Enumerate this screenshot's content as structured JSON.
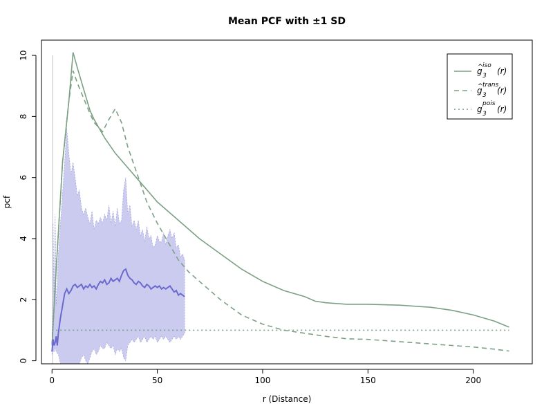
{
  "chart_data": {
    "type": "line",
    "title": "Mean PCF with ±1 SD",
    "xlabel": "r (Distance)",
    "ylabel": "pcf",
    "xlim": [
      -5,
      228
    ],
    "ylim": [
      -0.1,
      10.5
    ],
    "x_ticks": [
      0,
      50,
      100,
      150,
      200
    ],
    "y_ticks": [
      0,
      2,
      4,
      6,
      8,
      10
    ],
    "x_tick_labels": [
      "0",
      "50",
      "100",
      "150",
      "200"
    ],
    "y_tick_labels": [
      "0",
      "2",
      "4",
      "6",
      "8",
      "10"
    ],
    "legend_position": "top-right",
    "colors": {
      "model": "#7ba084",
      "mean": "#6a6acd",
      "band_fill": "#cbcbf0",
      "band_edge": "#9a9ad6",
      "axis": "#000000",
      "vline": "#bfbfbf"
    },
    "series": [
      {
        "name": "iso",
        "legend_base": "g",
        "legend_sub": "3",
        "legend_sup": "iso",
        "legend_arg": "(r)",
        "style": "solid",
        "x": [
          0,
          2,
          5,
          8,
          10,
          12,
          15,
          18,
          20,
          25,
          30,
          35,
          40,
          45,
          50,
          60,
          70,
          80,
          90,
          100,
          110,
          120,
          125,
          130,
          140,
          150,
          165,
          180,
          190,
          200,
          210,
          217
        ],
        "y": [
          0.5,
          3.0,
          6.5,
          8.5,
          10.1,
          9.6,
          8.9,
          8.2,
          7.9,
          7.3,
          6.8,
          6.4,
          6.0,
          5.6,
          5.2,
          4.6,
          4.0,
          3.5,
          3.0,
          2.6,
          2.3,
          2.1,
          1.95,
          1.9,
          1.85,
          1.85,
          1.82,
          1.75,
          1.65,
          1.5,
          1.3,
          1.1
        ]
      },
      {
        "name": "trans",
        "legend_base": "g",
        "legend_sub": "3",
        "legend_sup": "trans",
        "legend_arg": "(r)",
        "style": "dashed",
        "x": [
          0,
          2,
          5,
          8,
          10,
          12,
          15,
          18,
          20,
          24,
          27,
          30,
          33,
          36,
          40,
          45,
          50,
          55,
          60,
          65,
          70,
          80,
          90,
          100,
          110,
          120,
          130,
          140,
          150,
          160,
          170,
          180,
          190,
          200,
          210,
          217
        ],
        "y": [
          0.5,
          3.0,
          6.5,
          8.5,
          9.5,
          9.1,
          8.6,
          8.1,
          7.8,
          7.5,
          7.9,
          8.25,
          7.8,
          7.0,
          6.2,
          5.2,
          4.5,
          3.9,
          3.3,
          2.9,
          2.6,
          2.0,
          1.5,
          1.2,
          1.0,
          0.9,
          0.8,
          0.72,
          0.7,
          0.65,
          0.6,
          0.55,
          0.5,
          0.45,
          0.38,
          0.32
        ]
      },
      {
        "name": "pois",
        "legend_base": "g",
        "legend_sub": "3",
        "legend_sup": "pois",
        "legend_arg": "(r)",
        "style": "dotted",
        "x": [
          0,
          217
        ],
        "y": [
          1,
          1
        ]
      }
    ],
    "mean_pcf": {
      "x": [
        0,
        0.5,
        1,
        1.5,
        2,
        2.5,
        3,
        4,
        5,
        6,
        7,
        8,
        9,
        10,
        11,
        12,
        13,
        14,
        15,
        16,
        17,
        18,
        19,
        20,
        21,
        22,
        23,
        24,
        25,
        26,
        27,
        28,
        29,
        30,
        31,
        32,
        33,
        34,
        35,
        36,
        37,
        38,
        39,
        40,
        41,
        42,
        43,
        44,
        45,
        46,
        47,
        48,
        49,
        50,
        51,
        52,
        53,
        54,
        55,
        56,
        57,
        58,
        59,
        60,
        61,
        62,
        63
      ],
      "y": [
        0.3,
        0.7,
        0.5,
        0.6,
        0.8,
        0.5,
        0.9,
        1.4,
        1.8,
        2.2,
        2.35,
        2.2,
        2.3,
        2.45,
        2.5,
        2.4,
        2.45,
        2.5,
        2.35,
        2.45,
        2.4,
        2.5,
        2.4,
        2.45,
        2.35,
        2.5,
        2.6,
        2.55,
        2.65,
        2.5,
        2.55,
        2.7,
        2.6,
        2.65,
        2.7,
        2.6,
        2.8,
        2.95,
        3.0,
        2.8,
        2.7,
        2.65,
        2.55,
        2.5,
        2.6,
        2.55,
        2.45,
        2.4,
        2.5,
        2.45,
        2.35,
        2.4,
        2.45,
        2.4,
        2.45,
        2.35,
        2.4,
        2.35,
        2.4,
        2.45,
        2.35,
        2.25,
        2.3,
        2.15,
        2.2,
        2.15,
        2.1
      ]
    },
    "sd_band": {
      "x": [
        0,
        0.5,
        1,
        1.5,
        2,
        3,
        4,
        5,
        6,
        7,
        8,
        9,
        10,
        11,
        12,
        13,
        14,
        15,
        16,
        17,
        18,
        19,
        20,
        21,
        22,
        23,
        24,
        25,
        26,
        27,
        28,
        29,
        30,
        31,
        32,
        33,
        34,
        35,
        36,
        37,
        38,
        39,
        40,
        41,
        42,
        43,
        44,
        45,
        46,
        47,
        48,
        49,
        50,
        51,
        52,
        53,
        54,
        55,
        56,
        57,
        58,
        59,
        60,
        61,
        62,
        63
      ],
      "upper": [
        0.9,
        4.5,
        2.0,
        4.8,
        1.8,
        3.5,
        4.5,
        5.5,
        6.5,
        7.6,
        6.8,
        6.1,
        6.5,
        6.0,
        5.4,
        5.6,
        5.0,
        4.8,
        5.0,
        4.7,
        4.5,
        4.9,
        4.3,
        4.6,
        4.5,
        4.7,
        4.5,
        4.8,
        4.6,
        5.1,
        4.5,
        4.9,
        4.4,
        5.0,
        4.5,
        4.6,
        5.6,
        6.0,
        4.8,
        5.1,
        4.4,
        4.6,
        4.3,
        4.6,
        4.1,
        4.3,
        3.9,
        4.4,
        4.0,
        4.1,
        3.7,
        3.8,
        4.1,
        3.9,
        3.9,
        4.2,
        3.8,
        4.1,
        4.3,
        4.0,
        4.2,
        3.7,
        3.8,
        3.4,
        3.5,
        3.3
      ],
      "lower": [
        0.2,
        0.3,
        0.3,
        0.4,
        0.3,
        0.2,
        -0.1,
        -0.3,
        -0.4,
        -0.2,
        -0.1,
        -0.3,
        -0.2,
        -0.4,
        -0.2,
        -0.1,
        0.1,
        0.2,
        0.0,
        -0.1,
        0.1,
        0.3,
        0.4,
        0.2,
        0.3,
        0.5,
        0.4,
        0.4,
        0.6,
        0.5,
        0.4,
        0.5,
        0.2,
        0.4,
        0.3,
        0.4,
        0.1,
        0.0,
        0.5,
        0.6,
        0.7,
        0.6,
        0.7,
        0.8,
        0.6,
        0.7,
        0.8,
        0.6,
        0.7,
        0.8,
        0.7,
        0.8,
        0.6,
        0.7,
        0.8,
        0.7,
        0.8,
        0.7,
        0.6,
        0.7,
        0.8,
        0.7,
        0.8,
        0.7,
        0.8,
        0.9
      ]
    },
    "vertical_marker_x": 0.3
  }
}
